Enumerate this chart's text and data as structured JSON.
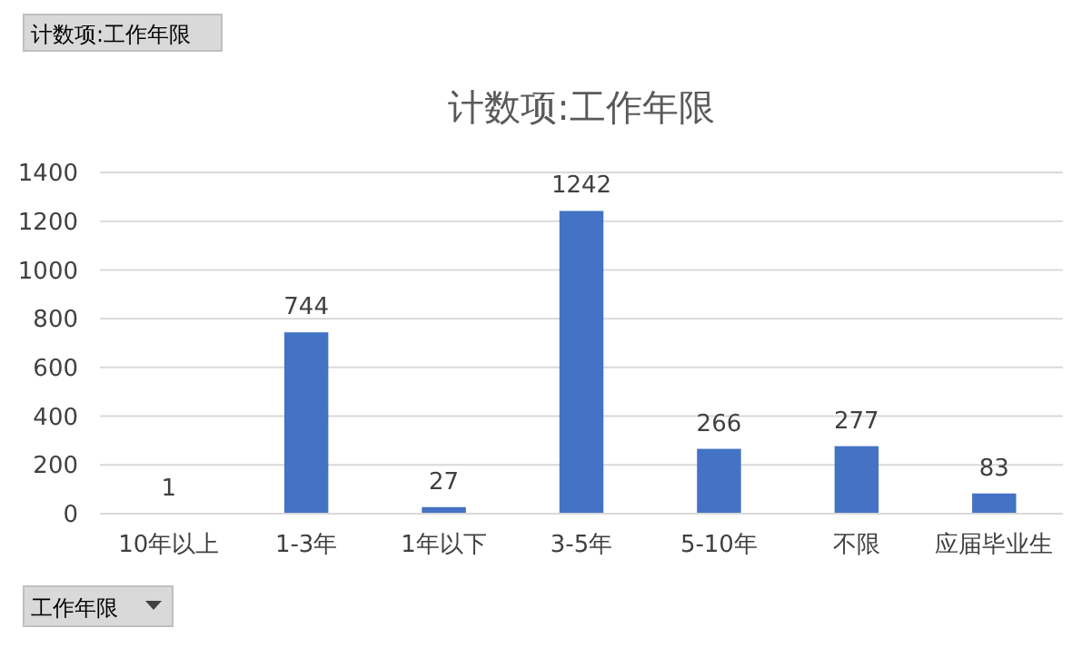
{
  "chart_data": {
    "type": "bar",
    "title": "计数项:工作年限",
    "categories": [
      "10年以上",
      "1-3年",
      "1年以下",
      "3-5年",
      "5-10年",
      "不限",
      "应届毕业生"
    ],
    "values": [
      1,
      744,
      27,
      1242,
      266,
      277,
      83
    ],
    "color": "#4472c4",
    "ylim": [
      0,
      1400
    ],
    "yticks": [
      0,
      200,
      400,
      600,
      800,
      1000,
      1200,
      1400
    ],
    "grid": "y",
    "data_labels": true,
    "annotations": [
      "计数项:工作年限",
      "工作年限"
    ]
  }
}
